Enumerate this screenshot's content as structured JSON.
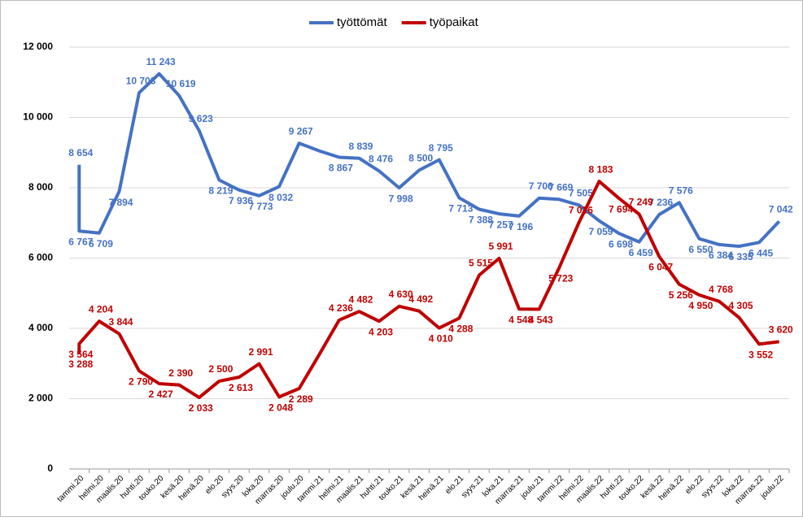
{
  "chart_data": {
    "type": "line",
    "categories": [
      null,
      "tammi.20",
      "helmi.20",
      "maalis.20",
      "huhti.20",
      "touko.20",
      "kesä.20",
      "heinä.20",
      "elo.20",
      "syys.20",
      "loka.20",
      "marras.20",
      "joulu.20",
      "tammi.21",
      "helmi.21",
      "maalis.21",
      "huhti.21",
      "touko.21",
      "kesä.21",
      "heinä.21",
      "elo.21",
      "syys.21",
      "loka.21",
      "marras.21",
      "joulu.21",
      "tammi.22",
      "helmi.22",
      "maalis.22",
      "huhti.22",
      "touko.22",
      "kesä.22",
      "heinä.22",
      "elo.22",
      "syys.22",
      "loka.22",
      "marras.22",
      "joulu.22"
    ],
    "series": [
      {
        "name": "työttömät",
        "color": "#4472c4",
        "values": [
          8654,
          6767,
          6709,
          7894,
          10703,
          11243,
          10619,
          9623,
          8219,
          7936,
          7773,
          8032,
          9267,
          9050,
          8867,
          8839,
          8476,
          7998,
          8500,
          8795,
          7713,
          7388,
          7257,
          7196,
          7706,
          7669,
          7505,
          7059,
          6698,
          6459,
          7236,
          7576,
          6550,
          6384,
          6335,
          6445,
          7042
        ],
        "value_labels": [
          "8 654",
          "6 767",
          "6 709",
          "7 894",
          "10 703",
          "11 243",
          "10 619",
          "9 623",
          "8 219",
          "7 936",
          "7 773",
          "8 032",
          "9 267",
          null,
          "8 867",
          "8 839",
          "8 476",
          "7 998",
          "8 500",
          "8 795",
          "7 713",
          "7 388",
          "7 257",
          "7 196",
          "7 706",
          "7 669",
          "7 505",
          "7 059",
          "6 698",
          "6 459",
          "7 236",
          "7 576",
          "6 550",
          "6 384",
          "6 335",
          "6 445",
          "7 042"
        ]
      },
      {
        "name": "työpaikat",
        "color": "#c00000",
        "values": [
          3288,
          3564,
          4204,
          3844,
          2790,
          2427,
          2390,
          2033,
          2500,
          2613,
          2991,
          2048,
          2289,
          3250,
          4236,
          4482,
          4203,
          4630,
          4492,
          4010,
          4288,
          5515,
          5991,
          4548,
          4543,
          5723,
          7026,
          8183,
          7694,
          7249,
          6047,
          5256,
          4950,
          4768,
          4305,
          3552,
          3620
        ],
        "value_labels": [
          "3 288",
          "3 564",
          "4 204",
          "3 844",
          "2 790",
          "2 427",
          "2 390",
          "2 033",
          "2 500",
          "2 613",
          "2 991",
          "2 048",
          "2 289",
          null,
          "4 236",
          "4 482",
          "4 203",
          "4 630",
          "4 492",
          "4 010",
          "4 288",
          "5 515",
          "5 991",
          "4 548",
          "4 543",
          "5 723",
          "7 026",
          "8 183",
          "7 694",
          "7 249",
          "6 047",
          "5 256",
          "4 950",
          "4 768",
          "4 305",
          "3 552",
          "3 620"
        ]
      }
    ],
    "ylim": [
      0,
      12000
    ],
    "yticks": [
      0,
      {
        "value": 2000,
        "label": "2 000"
      },
      {
        "value": 4000,
        "label": "4 000"
      },
      {
        "value": 6000,
        "label": "6 000"
      },
      {
        "value": 8000,
        "label": "8 000"
      },
      {
        "value": 10000,
        "label": "10 000"
      },
      {
        "value": 12000,
        "label": "12 000"
      }
    ],
    "grid": true,
    "legend": "top"
  }
}
